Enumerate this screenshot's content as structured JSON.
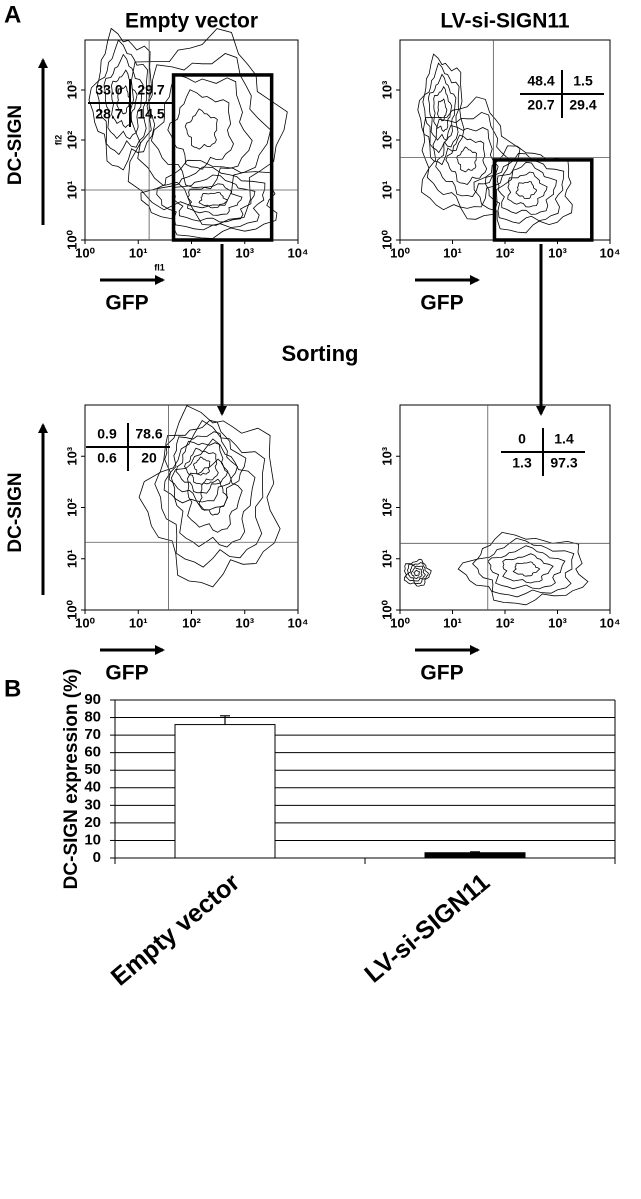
{
  "panel_labels": [
    "A",
    "B"
  ],
  "sorting_label": "Sorting",
  "chart_data": [
    {
      "type": "contour",
      "title": "Empty vector",
      "xlabel": "GFP",
      "ylabel": "DC-SIGN",
      "xcode": "fl1",
      "ycode": "fl2",
      "log_scale": true,
      "xlim": [
        1,
        10000
      ],
      "ylim": [
        1,
        10000
      ],
      "xticks": [
        {
          "value": 1,
          "label": "10⁰"
        },
        {
          "value": 10,
          "label": "10¹"
        },
        {
          "value": 100,
          "label": "10²"
        },
        {
          "value": 1000,
          "label": "10³"
        },
        {
          "value": 10000,
          "label": "10⁴"
        }
      ],
      "yticks": [
        {
          "value": 1,
          "label": "10⁰"
        },
        {
          "value": 10,
          "label": "10¹"
        },
        {
          "value": 100,
          "label": "10²"
        },
        {
          "value": 1000,
          "label": "10³"
        }
      ],
      "quadrant_x": 16,
      "quadrant_y": 10,
      "quadrants": [
        33,
        29.7,
        28.7,
        14.5
      ],
      "quadrant_labels": [
        "33.0",
        "29.7",
        "28.7",
        "14.5"
      ],
      "gate": {
        "x": [
          46,
          3200
        ],
        "y": [
          1,
          2000
        ]
      }
    },
    {
      "type": "contour",
      "title": "LV-si-SIGN11",
      "xlabel": "GFP",
      "log_scale": true,
      "xlim": [
        1,
        10000
      ],
      "ylim": [
        1,
        10000
      ],
      "xticks": [
        {
          "value": 1,
          "label": "10⁰"
        },
        {
          "value": 10,
          "label": "10¹"
        },
        {
          "value": 100,
          "label": "10²"
        },
        {
          "value": 1000,
          "label": "10³"
        },
        {
          "value": 10000,
          "label": "10⁴"
        }
      ],
      "yticks": [
        {
          "value": 1,
          "label": "10⁰"
        },
        {
          "value": 10,
          "label": "10¹"
        },
        {
          "value": 100,
          "label": "10²"
        },
        {
          "value": 1000,
          "label": "10³"
        }
      ],
      "quadrant_x": 60,
      "quadrant_y": 45,
      "quadrants": [
        48.4,
        1.5,
        20.7,
        29.4
      ],
      "gate": {
        "x": [
          63,
          4500
        ],
        "y": [
          1,
          40
        ]
      }
    },
    {
      "type": "contour",
      "xlabel": "GFP",
      "ylabel": "DC-SIGN",
      "log_scale": true,
      "xlim": [
        1,
        10000
      ],
      "ylim": [
        1,
        10000
      ],
      "xticks": [
        {
          "value": 1,
          "label": "10⁰"
        },
        {
          "value": 10,
          "label": "10¹"
        },
        {
          "value": 100,
          "label": "10²"
        },
        {
          "value": 1000,
          "label": "10³"
        },
        {
          "value": 10000,
          "label": "10⁴"
        }
      ],
      "yticks": [
        {
          "value": 1,
          "label": "10⁰"
        },
        {
          "value": 10,
          "label": "10¹"
        },
        {
          "value": 100,
          "label": "10²"
        },
        {
          "value": 1000,
          "label": "10³"
        }
      ],
      "quadrant_x": 37,
      "quadrant_y": 21,
      "quadrants": [
        0.9,
        78.6,
        0.6,
        20
      ]
    },
    {
      "type": "contour",
      "xlabel": "GFP",
      "log_scale": true,
      "xlim": [
        1,
        10000
      ],
      "ylim": [
        1,
        10000
      ],
      "xticks": [
        {
          "value": 1,
          "label": "10⁰"
        },
        {
          "value": 10,
          "label": "10¹"
        },
        {
          "value": 100,
          "label": "10²"
        },
        {
          "value": 1000,
          "label": "10³"
        },
        {
          "value": 10000,
          "label": "10⁴"
        }
      ],
      "yticks": [
        {
          "value": 1,
          "label": "10⁰"
        },
        {
          "value": 10,
          "label": "10¹"
        },
        {
          "value": 100,
          "label": "10²"
        },
        {
          "value": 1000,
          "label": "10³"
        }
      ],
      "quadrant_x": 47,
      "quadrant_y": 20,
      "quadrants": [
        0,
        1.4,
        1.3,
        97.3
      ]
    },
    {
      "type": "bar",
      "ylabel": "DC-SIGN expression (%)",
      "categories": [
        "Empty vector",
        "LV-si-SIGN11"
      ],
      "values": [
        76,
        3
      ],
      "errors": [
        5,
        0.5
      ],
      "colors": [
        "#ffffff",
        "#000000"
      ],
      "ylim": [
        0,
        90
      ],
      "yticks": [
        0,
        10,
        20,
        30,
        40,
        50,
        60,
        70,
        80,
        90
      ],
      "grid": true
    }
  ]
}
